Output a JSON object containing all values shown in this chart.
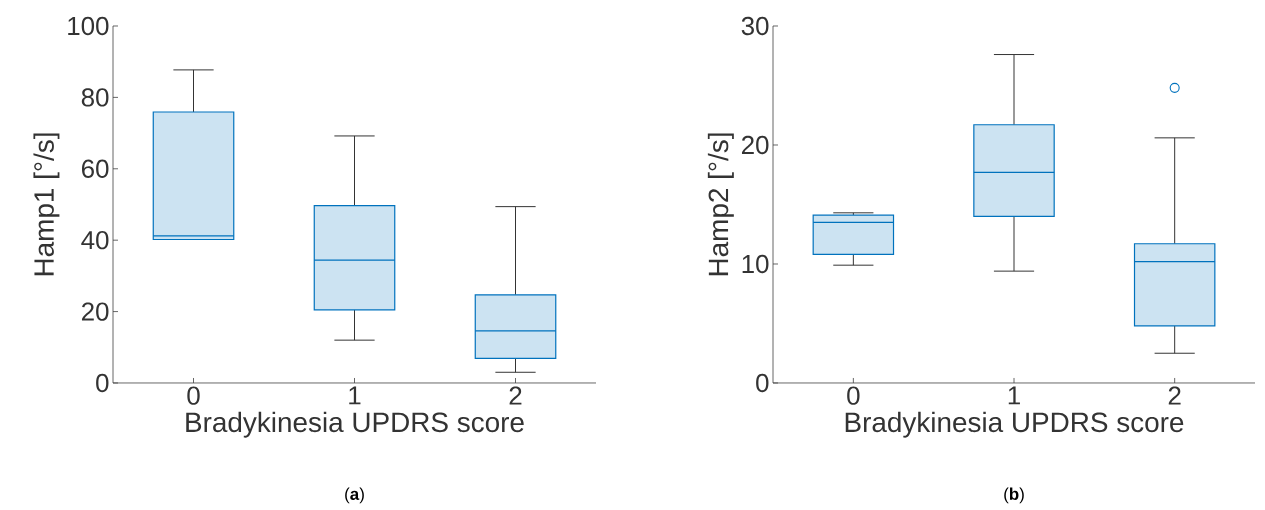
{
  "chart_data": [
    {
      "type": "box",
      "categories": [
        "0",
        "1",
        "2"
      ],
      "xlabel": "Bradykinesia UPDRS score",
      "ylabel": "Hamp1 [°/s]",
      "ylim": [
        0,
        100
      ],
      "yticks": [
        0,
        20,
        40,
        60,
        80,
        100
      ],
      "color": "#0072bd",
      "annotations": [
        "(**a**)"
      ],
      "boxes": [
        {
          "low": 40.2,
          "q1": 40.2,
          "median": 41.2,
          "q3": 75.9,
          "high": 87.7
        },
        {
          "low": 12.0,
          "q1": 20.5,
          "median": 34.4,
          "q3": 49.7,
          "high": 69.2
        },
        {
          "low": 3.0,
          "q1": 6.9,
          "median": 14.6,
          "q3": 24.7,
          "high": 49.4
        }
      ]
    },
    {
      "type": "box",
      "categories": [
        "0",
        "1",
        "2"
      ],
      "xlabel": "Bradykinesia UPDRS score",
      "ylabel": "Hamp2 [°/s]",
      "ylim": [
        0,
        30
      ],
      "yticks": [
        0,
        10,
        20,
        30
      ],
      "color": "#0072bd",
      "annotations": [
        "(**b**)"
      ],
      "boxes": [
        {
          "low": 9.9,
          "q1": 10.8,
          "median": 13.5,
          "q3": 14.1,
          "high": 14.3
        },
        {
          "low": 9.4,
          "q1": 14.0,
          "median": 17.7,
          "q3": 21.7,
          "high": 27.6
        },
        {
          "low": 2.5,
          "q1": 4.8,
          "median": 10.2,
          "q3": 11.7,
          "high": 20.6,
          "outliers": [
            24.8
          ]
        }
      ]
    }
  ]
}
